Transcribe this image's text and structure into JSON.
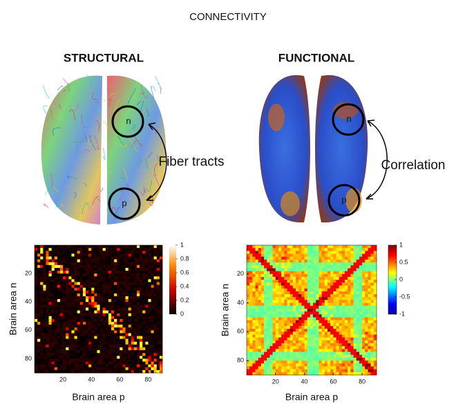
{
  "title": "CONNECTIVITY",
  "panels": [
    {
      "heading": "STRUCTURAL",
      "label": "Fiber tracts",
      "nodes": [
        "n",
        "p"
      ]
    },
    {
      "heading": "FUNCTIONAL",
      "label": "Correlation",
      "nodes": [
        "n",
        "p"
      ]
    }
  ],
  "matrices": [
    {
      "ylabel": "Brain area n",
      "xlabel": "Brain area p",
      "xlim": [
        0,
        90
      ],
      "ylim": [
        0,
        90
      ],
      "xticks": [
        20,
        40,
        60,
        80
      ],
      "yticks": [
        20,
        40,
        60,
        80
      ],
      "colorbar_lim": [
        0,
        1
      ],
      "colorbar_ticks": [
        0,
        0.2,
        0.4,
        0.6,
        0.8,
        1
      ]
    },
    {
      "ylabel": "Brain area n",
      "xlabel": "Brain area p",
      "xlim": [
        0,
        90
      ],
      "ylim": [
        0,
        90
      ],
      "xticks": [
        20,
        40,
        60,
        80
      ],
      "yticks": [
        20,
        40,
        60,
        80
      ],
      "colorbar_lim": [
        -1,
        1
      ],
      "colorbar_ticks": [
        -1,
        -0.5,
        0,
        0.5,
        1
      ]
    }
  ]
}
